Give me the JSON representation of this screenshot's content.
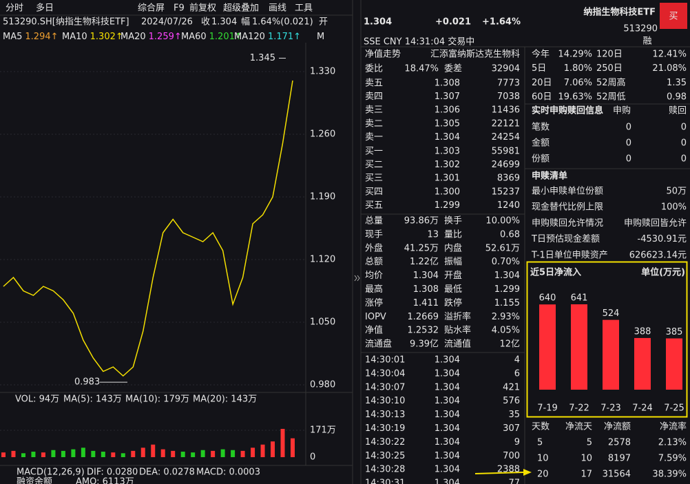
{
  "toolbar": [
    "分时",
    "多日",
    "综合屏",
    "F9",
    "前复权",
    "超级叠加",
    "画线",
    "工具"
  ],
  "info": {
    "code": "513290.SH[纳指生物科技ETF]",
    "date": "2024/07/26",
    "close_label": "收",
    "close": "1.304",
    "amp_label": "幅",
    "amp": "1.64%(0.021)",
    "open_label": "开"
  },
  "ma": [
    {
      "label": "MA5",
      "value": "1.294↑"
    },
    {
      "label": "MA10",
      "value": "1.302↑"
    },
    {
      "label": "MA20",
      "value": "1.259↑"
    },
    {
      "label": "MA60",
      "value": "1.201↑"
    },
    {
      "label": "MA120",
      "value": "1.171↑"
    },
    {
      "label": "M",
      "value": ""
    }
  ],
  "price_chart": {
    "yticks": [
      {
        "value": 1.33,
        "label": "1.330"
      },
      {
        "value": 1.26,
        "label": "1.260"
      },
      {
        "value": 1.19,
        "label": "1.190"
      },
      {
        "value": 1.12,
        "label": "1.120"
      },
      {
        "value": 1.05,
        "label": "1.050"
      },
      {
        "value": 0.98,
        "label": "0.980"
      }
    ],
    "high": 1.345,
    "low": 0.983,
    "closes": [
      1.09,
      1.1,
      1.085,
      1.08,
      1.09,
      1.085,
      1.075,
      1.06,
      1.03,
      1.01,
      0.995,
      1.0,
      0.99,
      1.0,
      1.04,
      1.1,
      1.15,
      1.165,
      1.15,
      1.145,
      1.14,
      1.15,
      1.13,
      1.07,
      1.1,
      1.16,
      1.17,
      1.19,
      1.25,
      1.32
    ]
  },
  "volume": {
    "header": [
      "VOL: 94万",
      "MA(5): 143万",
      "MA(10): 179万",
      "MA(20): 143万"
    ],
    "yticks": [
      {
        "value": 171,
        "label": "171万"
      },
      0
    ],
    "values": [
      30,
      40,
      25,
      35,
      30,
      45,
      40,
      50,
      60,
      40,
      35,
      30,
      25,
      40,
      60,
      80,
      50,
      40,
      35,
      30,
      45,
      40,
      50,
      45,
      40,
      60,
      80,
      100,
      180,
      120
    ]
  },
  "macd": [
    "MACD(12,26,9)",
    "DIF: 0.0280",
    "DEA: 0.0278",
    "MACD: 0.0003"
  ],
  "footer": [
    "融资余额",
    "AMO: 6113万"
  ],
  "quote": {
    "price": "1.304",
    "change": "+0.021",
    "pct": "+1.64%",
    "name": "纳指生物科技ETF",
    "code": "513290",
    "buy": "买",
    "market": "SSE  CNY  14:31:04  交易中",
    "margin": "融"
  },
  "nav_row": [
    "净值走势",
    "汇添富纳斯达克生物科"
  ],
  "weibi": [
    "委比",
    "18.47%",
    "委差",
    "32904"
  ],
  "asks": [
    [
      "卖五",
      "1.308",
      "7773"
    ],
    [
      "卖四",
      "1.307",
      "7038"
    ],
    [
      "卖三",
      "1.306",
      "11436"
    ],
    [
      "卖二",
      "1.305",
      "22121"
    ],
    [
      "卖一",
      "1.304",
      "24254"
    ]
  ],
  "bids": [
    [
      "买一",
      "1.303",
      "55981"
    ],
    [
      "买二",
      "1.302",
      "24699"
    ],
    [
      "买三",
      "1.301",
      "8369"
    ],
    [
      "买四",
      "1.300",
      "15237"
    ],
    [
      "买五",
      "1.299",
      "1240"
    ]
  ],
  "stats": [
    [
      "总量",
      "93.86万",
      "换手",
      "10.00%"
    ],
    [
      "现手",
      "13",
      "量比",
      "0.68"
    ],
    [
      "外盘",
      "41.25万",
      "内盘",
      "52.61万"
    ],
    [
      "总额",
      "1.22亿",
      "振幅",
      "0.70%"
    ],
    [
      "均价",
      "1.304",
      "开盘",
      "1.304"
    ],
    [
      "最高",
      "1.308",
      "最低",
      "1.299"
    ],
    [
      "涨停",
      "1.411",
      "跌停",
      "1.155"
    ],
    [
      "IOPV",
      "1.2669",
      "溢折率",
      "2.93%"
    ],
    [
      "净值",
      "1.2532",
      "贴水率",
      "4.05%"
    ],
    [
      "流通盘",
      "9.39亿",
      "流通值",
      "12亿"
    ]
  ],
  "trades": [
    [
      "14:30:01",
      "1.304",
      "4"
    ],
    [
      "14:30:04",
      "1.304",
      "6"
    ],
    [
      "14:30:07",
      "1.304",
      "421"
    ],
    [
      "14:30:10",
      "1.304",
      "576"
    ],
    [
      "14:30:13",
      "1.304",
      "35"
    ],
    [
      "14:30:19",
      "1.304",
      "307"
    ],
    [
      "14:30:22",
      "1.304",
      "9"
    ],
    [
      "14:30:25",
      "1.304",
      "700"
    ],
    [
      "14:30:28",
      "1.304",
      "2388"
    ],
    [
      "14:30:31",
      "1.304",
      "77"
    ]
  ],
  "returns": [
    [
      "今年",
      "14.29%",
      "120日",
      "12.41%"
    ],
    [
      "5日",
      "1.80%",
      "250日",
      "21.08%"
    ],
    [
      "20日",
      "7.06%",
      "52周高",
      "1.35"
    ],
    [
      "60日",
      "19.63%",
      "52周低",
      "0.98"
    ]
  ],
  "creation": {
    "title": "实时申购赎回信息",
    "cols": [
      "申购",
      "赎回"
    ],
    "rows": [
      [
        "笔数",
        "0",
        "0"
      ],
      [
        "金额",
        "0",
        "0"
      ],
      [
        "份额",
        "0",
        "0"
      ]
    ]
  },
  "list": {
    "title": "申赎清单",
    "rows": [
      [
        "最小申赎单位份额",
        "50万"
      ],
      [
        "现金替代比例上限",
        "100%"
      ],
      [
        "申购赎回允许情况",
        "申购赎回皆允许"
      ],
      [
        "T日预估现金差额",
        "-4530.91元"
      ],
      [
        "T-1日单位申赎资产",
        "626623.14元"
      ]
    ]
  },
  "chart_data": {
    "type": "bar",
    "title": "近5日净流入",
    "unit": "单位(万元)",
    "categories": [
      "7-19",
      "7-22",
      "7-23",
      "7-24",
      "7-25"
    ],
    "values": [
      640,
      641,
      524,
      388,
      385
    ],
    "color": "#ff2d36"
  },
  "flow_table": {
    "header": [
      "天数",
      "净流天",
      "净流额",
      "净流率"
    ],
    "rows": [
      [
        "5",
        "5",
        "2578",
        "2.13%"
      ],
      [
        "10",
        "10",
        "8197",
        "7.59%"
      ],
      [
        "20",
        "17",
        "31564",
        "38.39%"
      ]
    ]
  }
}
